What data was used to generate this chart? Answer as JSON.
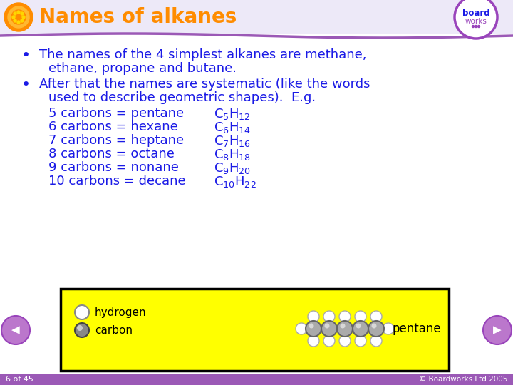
{
  "title": "Names of alkanes",
  "title_color": "#FF8C00",
  "title_fontsize": 20,
  "bg_color": "#FFFFFF",
  "header_bg_color": "#EDE9F8",
  "header_line_color": "#9B59B6",
  "body_text_color": "#1A1AE6",
  "body_fontsize": 13.0,
  "bullet1_line1": "The names of the 4 simplest alkanes are methane,",
  "bullet1_line2": "ethane, propane and butane.",
  "bullet2_line1": "After that the names are systematic (like the words",
  "bullet2_line2": "used to describe geometric shapes).  E.g.",
  "carbons": [
    {
      "label": "5 carbons = pentane",
      "formula": "C$_5$H$_{12}$"
    },
    {
      "label": "6 carbons = hexane",
      "formula": "C$_6$H$_{14}$"
    },
    {
      "label": "7 carbons = heptane",
      "formula": "C$_7$H$_{16}$"
    },
    {
      "label": "8 carbons = octane",
      "formula": "C$_8$H$_{18}$"
    },
    {
      "label": "9 carbons = nonane",
      "formula": "C$_9$H$_{20}$"
    },
    {
      "label": "10 carbons = decane",
      "formula": "C$_{10}$H$_{22}$"
    }
  ],
  "box_color": "#FFFF00",
  "box_border": "#000000",
  "footer_color": "#9B59B6",
  "footer_text": "6 of 45",
  "footer_right": "© Boardworks Ltd 2005",
  "nav_color": "#BB77CC",
  "nav_border": "#9944BB"
}
